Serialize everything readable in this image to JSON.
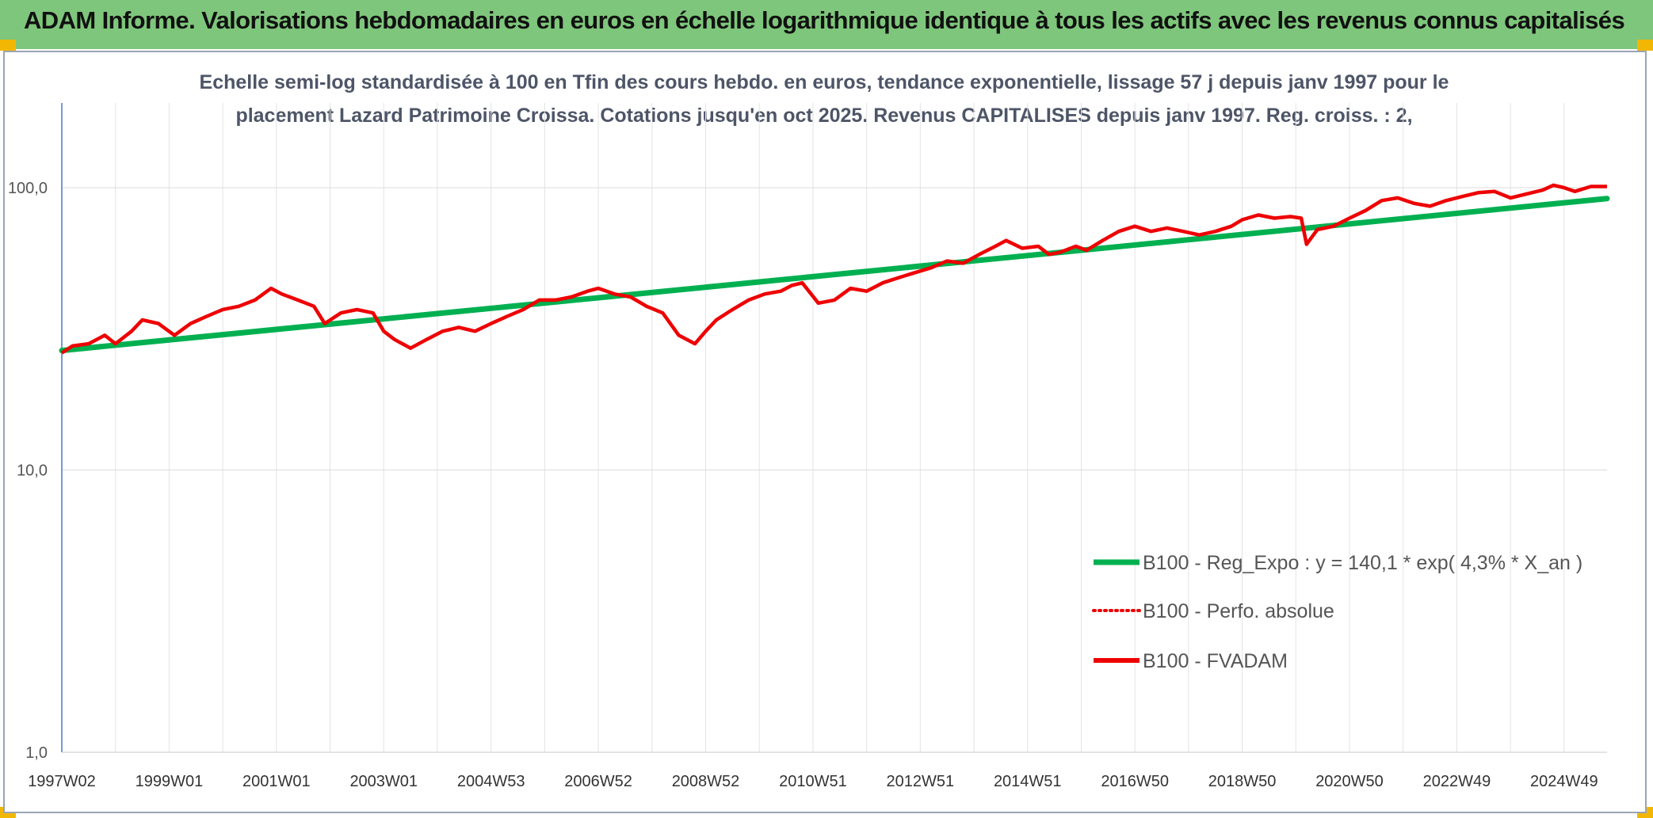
{
  "header": {
    "title": "ADAM Informe. Valorisations hebdomadaires en euros en échelle logarithmique identique à tous les actifs avec les revenus connus capitalisés"
  },
  "colors": {
    "header_bg": "#7ec67b",
    "trend": "#00b050",
    "series": "#ee0000",
    "corner": "#f2b705"
  },
  "chart_data": {
    "type": "line",
    "title_line1": "Echelle semi-log standardisée à 100 en Tfin des cours hebdo. en euros, tendance exponentielle, lissage 57 j depuis janv 1997 pour le",
    "title_line2": "placement Lazard Patrimoine Croissa. Cotations jusqu'en oct 2025. Revenus CAPITALISES depuis janv 1997. Reg. croiss. : 2,",
    "y_scale": "log",
    "ylim": [
      1,
      200
    ],
    "y_ticks": [
      {
        "value": 1,
        "label": "1,0"
      },
      {
        "value": 10,
        "label": "10,0"
      },
      {
        "value": 100,
        "label": "100,0"
      }
    ],
    "xlim": [
      1997.0,
      2025.8
    ],
    "x_ticks": [
      {
        "value": 1997.0,
        "label": "1997W02"
      },
      {
        "value": 1999.0,
        "label": "1999W01"
      },
      {
        "value": 2001.0,
        "label": "2001W01"
      },
      {
        "value": 2003.0,
        "label": "2003W01"
      },
      {
        "value": 2005.0,
        "label": "2004W53"
      },
      {
        "value": 2007.0,
        "label": "2006W52"
      },
      {
        "value": 2009.0,
        "label": "2008W52"
      },
      {
        "value": 2011.0,
        "label": "2010W51"
      },
      {
        "value": 2013.0,
        "label": "2012W51"
      },
      {
        "value": 2015.0,
        "label": "2014W51"
      },
      {
        "value": 2017.0,
        "label": "2016W50"
      },
      {
        "value": 2019.0,
        "label": "2018W50"
      },
      {
        "value": 2021.0,
        "label": "2020W50"
      },
      {
        "value": 2023.0,
        "label": "2022W49"
      },
      {
        "value": 2025.0,
        "label": "2024W49"
      }
    ],
    "series": [
      {
        "name": "B100 - Reg_Expo : y = 140,1 * exp( 4,3% *  X_an )",
        "style": "solid-thick-green",
        "x": [
          1997.0,
          2025.8
        ],
        "y": [
          26.5,
          91.5
        ]
      },
      {
        "name": "B100 - Perfo. absolue",
        "style": "dotted-red",
        "x": [],
        "y": []
      },
      {
        "name": "B100 - FVADAM",
        "style": "solid-red",
        "x": [
          1997.0,
          1997.2,
          1997.5,
          1997.8,
          1998.0,
          1998.3,
          1998.5,
          1998.8,
          1999.1,
          1999.4,
          1999.7,
          2000.0,
          2000.3,
          2000.6,
          2000.9,
          2001.1,
          2001.4,
          2001.7,
          2001.9,
          2002.2,
          2002.5,
          2002.8,
          2003.0,
          2003.2,
          2003.5,
          2003.8,
          2004.1,
          2004.4,
          2004.7,
          2005.0,
          2005.3,
          2005.6,
          2005.9,
          2006.2,
          2006.5,
          2006.8,
          2007.0,
          2007.3,
          2007.6,
          2007.9,
          2008.2,
          2008.5,
          2008.8,
          2009.0,
          2009.2,
          2009.5,
          2009.8,
          2010.1,
          2010.4,
          2010.6,
          2010.8,
          2011.1,
          2011.4,
          2011.7,
          2012.0,
          2012.3,
          2012.6,
          2012.9,
          2013.2,
          2013.5,
          2013.8,
          2014.1,
          2014.4,
          2014.6,
          2014.9,
          2015.2,
          2015.4,
          2015.6,
          2015.9,
          2016.1,
          2016.4,
          2016.7,
          2017.0,
          2017.3,
          2017.6,
          2017.9,
          2018.2,
          2018.5,
          2018.8,
          2019.0,
          2019.3,
          2019.6,
          2019.9,
          2020.1,
          2020.2,
          2020.4,
          2020.7,
          2021.0,
          2021.3,
          2021.6,
          2021.9,
          2022.2,
          2022.5,
          2022.8,
          2023.1,
          2023.4,
          2023.7,
          2024.0,
          2024.3,
          2024.6,
          2024.8,
          2025.0,
          2025.2,
          2025.5,
          2025.8
        ],
        "y": [
          26,
          27.5,
          28,
          30,
          28,
          31,
          34,
          33,
          30,
          33,
          35,
          37,
          38,
          40,
          44,
          42,
          40,
          38,
          33,
          36,
          37,
          36,
          31,
          29,
          27,
          29,
          31,
          32,
          31,
          33,
          35,
          37,
          40,
          40,
          41,
          43,
          44,
          42,
          41,
          38,
          36,
          30,
          28,
          31,
          34,
          37,
          40,
          42,
          43,
          45,
          46,
          39,
          40,
          44,
          43,
          46,
          48,
          50,
          52,
          55,
          54,
          58,
          62,
          65,
          61,
          62,
          58,
          59,
          62,
          60,
          65,
          70,
          73,
          70,
          72,
          70,
          68,
          70,
          73,
          77,
          80,
          78,
          79,
          78,
          63,
          71,
          73,
          78,
          83,
          90,
          92,
          88,
          86,
          90,
          93,
          96,
          97,
          92,
          95,
          98,
          102,
          100,
          97,
          101,
          101
        ]
      }
    ]
  }
}
